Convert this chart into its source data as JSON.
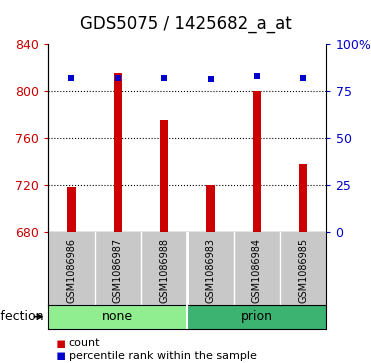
{
  "title": "GDS5075 / 1425682_a_at",
  "samples": [
    "GSM1086986",
    "GSM1086987",
    "GSM1086988",
    "GSM1086983",
    "GSM1086984",
    "GSM1086985"
  ],
  "counts": [
    718,
    815,
    775,
    720,
    800,
    738
  ],
  "percentiles": [
    82,
    82,
    82,
    81,
    83,
    82
  ],
  "group_none_label": "none",
  "group_prion_label": "prion",
  "group_color_none": "#90EE90",
  "group_color_prion": "#3CB371",
  "group_label": "infection",
  "ylim_left": [
    680,
    840
  ],
  "ylim_right": [
    0,
    100
  ],
  "yticks_left": [
    680,
    720,
    760,
    800,
    840
  ],
  "yticks_right": [
    0,
    25,
    50,
    75,
    100
  ],
  "bar_color": "#CC0000",
  "dot_color": "#0000CC",
  "bar_width": 0.18,
  "background_plot": "#FFFFFF",
  "background_sample": "#C8C8C8",
  "title_fontsize": 12,
  "tick_fontsize": 9,
  "sample_fontsize": 7,
  "group_fontsize": 9,
  "legend_fontsize": 8,
  "axis_color_left": "#CC0000",
  "axis_color_right": "#0000CC"
}
